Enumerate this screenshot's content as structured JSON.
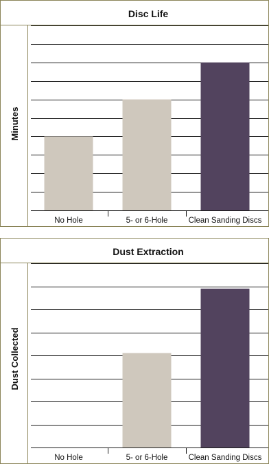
{
  "colors": {
    "frame": "#8a8458",
    "grid": "#1a1a1a",
    "bar_light": "#cfc8bd",
    "bar_dark": "#52435e",
    "text": "#111111"
  },
  "chart_data": [
    {
      "type": "bar",
      "title": "Disc Life",
      "xlabel": "",
      "ylabel": "Minutes",
      "categories": [
        "No Hole",
        "5- or 6-Hole",
        "Clean Sanding Discs"
      ],
      "values": [
        4,
        6,
        8
      ],
      "bar_colors": [
        "#cfc8bd",
        "#cfc8bd",
        "#52435e"
      ],
      "ylim": [
        0,
        10
      ],
      "gridlines": 10,
      "grid": true,
      "legend": "none"
    },
    {
      "type": "bar",
      "title": "Dust Extraction",
      "xlabel": "",
      "ylabel": "Dust Collected",
      "categories": [
        "No Hole",
        "5- or 6-Hole",
        "Clean Sanding Discs"
      ],
      "values": [
        0,
        4.1,
        6.9
      ],
      "bar_colors": [
        "#cfc8bd",
        "#cfc8bd",
        "#52435e"
      ],
      "ylim": [
        0,
        8
      ],
      "gridlines": 8,
      "grid": true,
      "legend": "none"
    }
  ]
}
